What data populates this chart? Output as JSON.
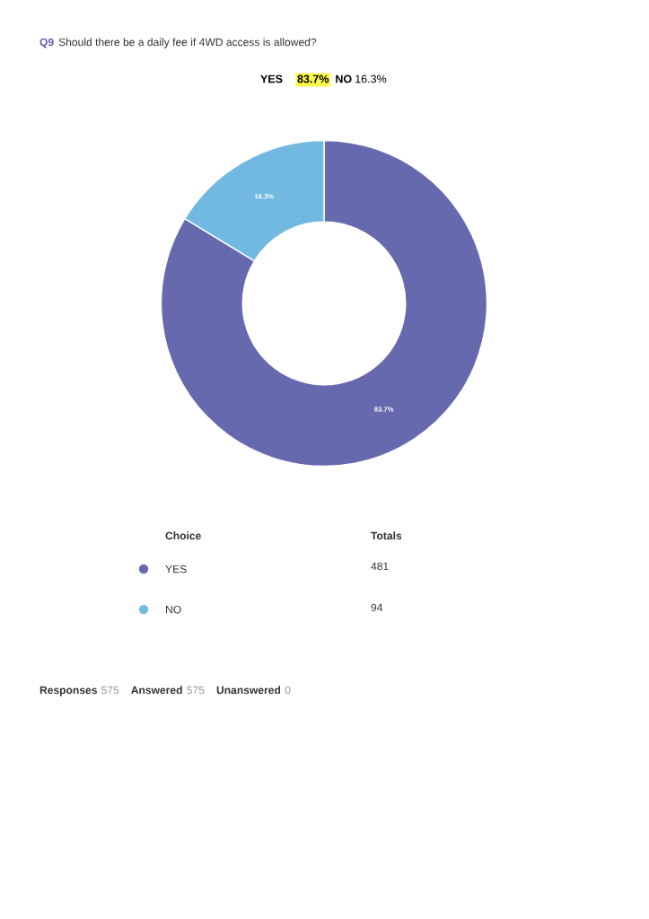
{
  "chart_data": {
    "type": "donut",
    "title": "Q9 Should there be a daily fee if 4WD access is allowed?",
    "categories": [
      "YES",
      "NO"
    ],
    "values": [
      83.7,
      16.3
    ],
    "colors": [
      "#6769ae",
      "#72b9e2"
    ],
    "value_labels": [
      "83.7%",
      "16.3%"
    ],
    "legend": "bottom left",
    "annotations": [
      "YES 83.7% NO 16.3%",
      "Choice",
      "Totals",
      "481",
      "94",
      "Responses 575",
      "Answered 575",
      "Unanswered 0"
    ]
  }
}
